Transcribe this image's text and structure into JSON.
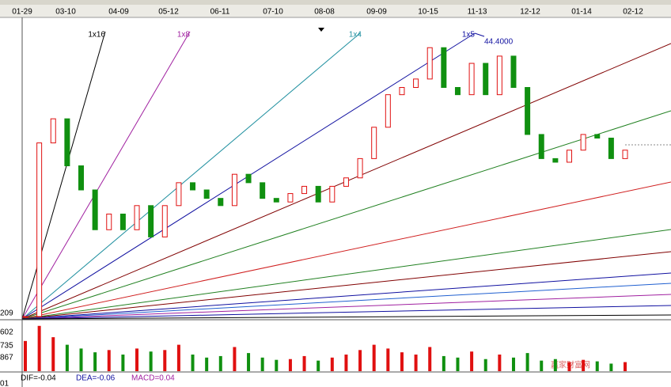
{
  "header": {
    "dates": [
      "01-29",
      "03-10",
      "04-09",
      "05-12",
      "06-11",
      "07-10",
      "08-08",
      "09-09",
      "10-15",
      "11-13",
      "12-12",
      "01-14",
      "02-12"
    ]
  },
  "fan_labels": [
    "1x16",
    "1x8",
    "1x4",
    "1x5"
  ],
  "chart_data": {
    "type": "candlestick",
    "price_label": "44.4000",
    "ylim": [
      20.9,
      44.4
    ],
    "close": [
      21.1,
      35.5,
      37.5,
      33.6,
      31.6,
      28.3,
      29.6,
      28.3,
      30.3,
      27.7,
      30.3,
      32.2,
      31.6,
      30.9,
      30.3,
      32.9,
      32.2,
      30.9,
      30.6,
      31.3,
      31.9,
      30.6,
      31.9,
      32.6,
      34.2,
      36.8,
      39.5,
      40.1,
      40.8,
      43.4,
      40.1,
      39.5,
      42.1,
      39.5,
      42.7,
      40.1,
      36.2,
      34.2,
      33.9,
      34.9,
      36.2,
      35.9,
      34.2,
      34.9
    ],
    "volume": [
      40,
      60,
      45,
      35,
      30,
      25,
      28,
      22,
      30,
      26,
      28,
      35,
      22,
      18,
      20,
      32,
      24,
      18,
      15,
      16,
      20,
      14,
      18,
      22,
      28,
      35,
      30,
      25,
      22,
      32,
      20,
      18,
      26,
      16,
      22,
      18,
      24,
      14,
      16,
      12,
      15,
      13,
      10,
      12
    ],
    "vlim": [
      0,
      65
    ],
    "axis_labels": [
      "209",
      "602",
      "735",
      "867",
      "01"
    ]
  },
  "macd": {
    "dif": "DIF=-0.04",
    "dea": "DEA=-0.06",
    "macd": "MACD=0.04"
  },
  "watermark": "赢家财富网"
}
